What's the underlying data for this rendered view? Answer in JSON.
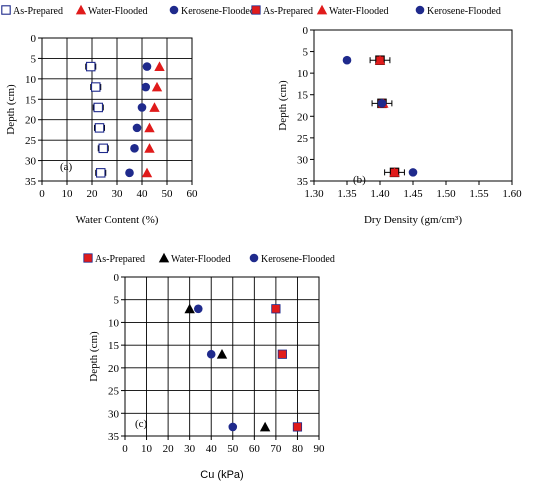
{
  "colors": {
    "as_prepared": "#ffffff",
    "as_prepared_red": "#e01b1b",
    "water_flooded_red": "#e01b1b",
    "water_flooded_black": "#000000",
    "kerosene_flooded": "#1f2a8c",
    "axis": "#000000",
    "grid": "#000000"
  },
  "chart_data": [
    {
      "type": "scatter",
      "panel_label": "(a)",
      "xlabel": "Water Content (%)",
      "ylabel": "Depth (cm)",
      "xlim": [
        0,
        60
      ],
      "ylim": [
        0,
        35
      ],
      "y_inverted": true,
      "x_ticks": [
        "0",
        "10",
        "20",
        "30",
        "40",
        "50",
        "60"
      ],
      "y_ticks": [
        "0",
        "5",
        "10",
        "15",
        "20",
        "25",
        "30",
        "35"
      ],
      "grid": true,
      "legend_position": "top",
      "legend": [
        "As-Prepared",
        "Water-Flooded",
        "Kerosene-Flooded"
      ],
      "series": [
        {
          "name": "As-Prepared",
          "marker": "open-square",
          "x_error": 2,
          "points": [
            [
              19.5,
              7
            ],
            [
              21.5,
              12
            ],
            [
              22.5,
              17
            ],
            [
              23,
              22
            ],
            [
              24.5,
              27
            ],
            [
              23.5,
              33
            ]
          ]
        },
        {
          "name": "Water-Flooded",
          "marker": "triangle",
          "points": [
            [
              47,
              7
            ],
            [
              46,
              12
            ],
            [
              45,
              17
            ],
            [
              43,
              22
            ],
            [
              43,
              27
            ],
            [
              42,
              33
            ]
          ]
        },
        {
          "name": "Kerosene-Flooded",
          "marker": "circle",
          "points": [
            [
              42,
              7
            ],
            [
              41.5,
              12
            ],
            [
              40,
              17
            ],
            [
              38,
              22
            ],
            [
              37,
              27
            ],
            [
              35,
              33
            ]
          ]
        }
      ]
    },
    {
      "type": "scatter",
      "panel_label": "(b)",
      "xlabel": "Dry Density (gm/cm³)",
      "ylabel": "Depth (cm)",
      "xlim": [
        1.3,
        1.6
      ],
      "ylim": [
        0,
        35
      ],
      "y_inverted": true,
      "x_ticks": [
        "1.30",
        "1.35",
        "1.40",
        "1.45",
        "1.50",
        "1.55",
        "1.60"
      ],
      "y_ticks": [
        "0",
        "5",
        "10",
        "15",
        "20",
        "25",
        "30",
        "35"
      ],
      "grid": false,
      "legend_position": "top",
      "legend": [
        "As-Prepared",
        "Water-Flooded",
        "Kerosene-Flooded"
      ],
      "series": [
        {
          "name": "As-Prepared",
          "marker": "open-square",
          "x_error": 0.015,
          "points": [
            [
              1.4,
              7
            ],
            [
              1.403,
              17
            ],
            [
              1.422,
              33
            ]
          ]
        },
        {
          "name": "Water-Flooded",
          "marker": "triangle",
          "points": [
            [
              1.4,
              7
            ],
            [
              1.405,
              17
            ],
            [
              1.422,
              33
            ]
          ]
        },
        {
          "name": "Kerosene-Flooded",
          "marker": "circle",
          "points": [
            [
              1.35,
              7
            ],
            [
              1.403,
              17
            ],
            [
              1.45,
              33
            ]
          ]
        }
      ]
    },
    {
      "type": "scatter",
      "panel_label": "(c)",
      "xlabel": "Cu (kPa)",
      "ylabel": "Depth (cm)",
      "xlim": [
        0,
        90
      ],
      "ylim": [
        0,
        35
      ],
      "y_inverted": true,
      "x_ticks": [
        "0",
        "10",
        "20",
        "30",
        "40",
        "50",
        "60",
        "70",
        "80",
        "90"
      ],
      "y_ticks": [
        "0",
        "5",
        "10",
        "15",
        "20",
        "25",
        "30",
        "35"
      ],
      "grid": true,
      "legend_position": "top",
      "legend": [
        "As-Prepared",
        "Water-Flooded",
        "Kerosene-Flooded"
      ],
      "series": [
        {
          "name": "As-Prepared",
          "marker": "filled-square",
          "points": [
            [
              70,
              7
            ],
            [
              73,
              17
            ],
            [
              80,
              33
            ]
          ]
        },
        {
          "name": "Water-Flooded",
          "marker": "triangle",
          "points": [
            [
              30,
              7
            ],
            [
              45,
              17
            ],
            [
              65,
              33
            ]
          ]
        },
        {
          "name": "Kerosene-Flooded",
          "marker": "circle",
          "points": [
            [
              34,
              7
            ],
            [
              40,
              17
            ],
            [
              50,
              33
            ]
          ]
        }
      ]
    }
  ]
}
